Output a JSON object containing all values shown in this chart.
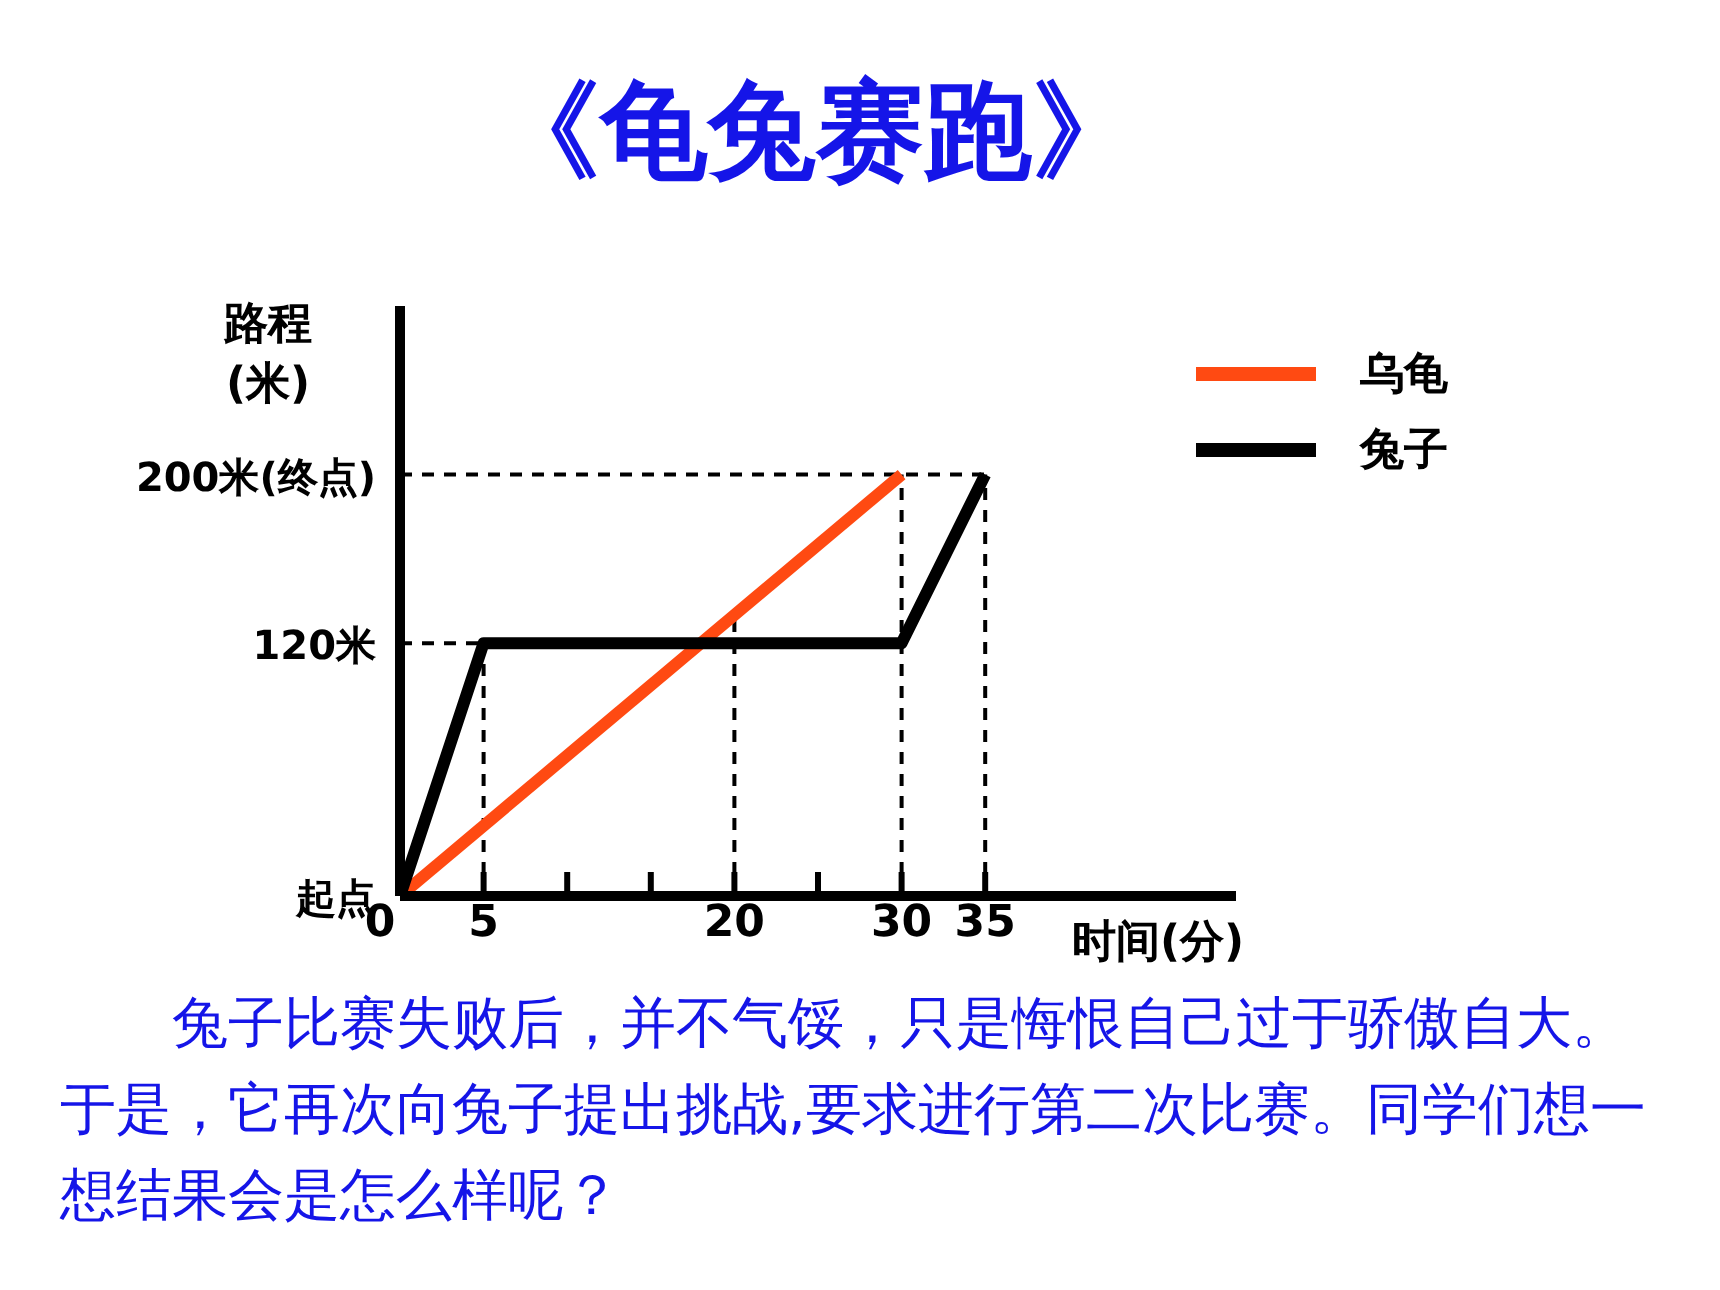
{
  "chart_data": {
    "type": "line",
    "title": "《龟兔赛跑》",
    "xlabel": "时间(分)",
    "ylabel": "路程\n(米)",
    "xlim": [
      0,
      50
    ],
    "xticks": [
      0,
      5,
      {
        "value": 10,
        "label": null
      },
      {
        "value": 15,
        "label": null
      },
      20,
      {
        "value": 25,
        "label": null
      },
      30,
      35
    ],
    "ylim": [
      0,
      280
    ],
    "yticks": [
      {
        "value": 0,
        "label": "起点"
      },
      {
        "value": 120,
        "label": "120米"
      },
      {
        "value": 200,
        "label": "200米(终点)"
      }
    ],
    "series": [
      {
        "name": "乌龟",
        "color": "#ff4a12",
        "x": [
          0,
          30
        ],
        "values": [
          0,
          200
        ]
      },
      {
        "name": "兔子",
        "color": "#000000",
        "x": [
          0,
          5,
          30,
          35
        ],
        "values": [
          0,
          120,
          120,
          200
        ]
      }
    ],
    "ref_lines": [
      {
        "axis": "y",
        "value": 120,
        "line_style": "dashed"
      },
      {
        "axis": "y",
        "value": 200,
        "line_style": "dashed"
      },
      {
        "axis": "x",
        "value": 5,
        "line_style": "dashed"
      },
      {
        "axis": "x",
        "value": 20,
        "line_style": "dashed"
      },
      {
        "axis": "x",
        "value": 30,
        "line_style": "dashed"
      },
      {
        "axis": "x",
        "value": 35,
        "line_style": "dashed"
      }
    ],
    "marker": "none",
    "legend": "top right",
    "annotations": [
      "兔子比赛失败后，并不气馁，只是悔恨自己过于骄傲自大。于是，它再次向兔子提出挑战,要求进行第二次比赛。同学们想一想结果会是怎么样呢？"
    ]
  }
}
